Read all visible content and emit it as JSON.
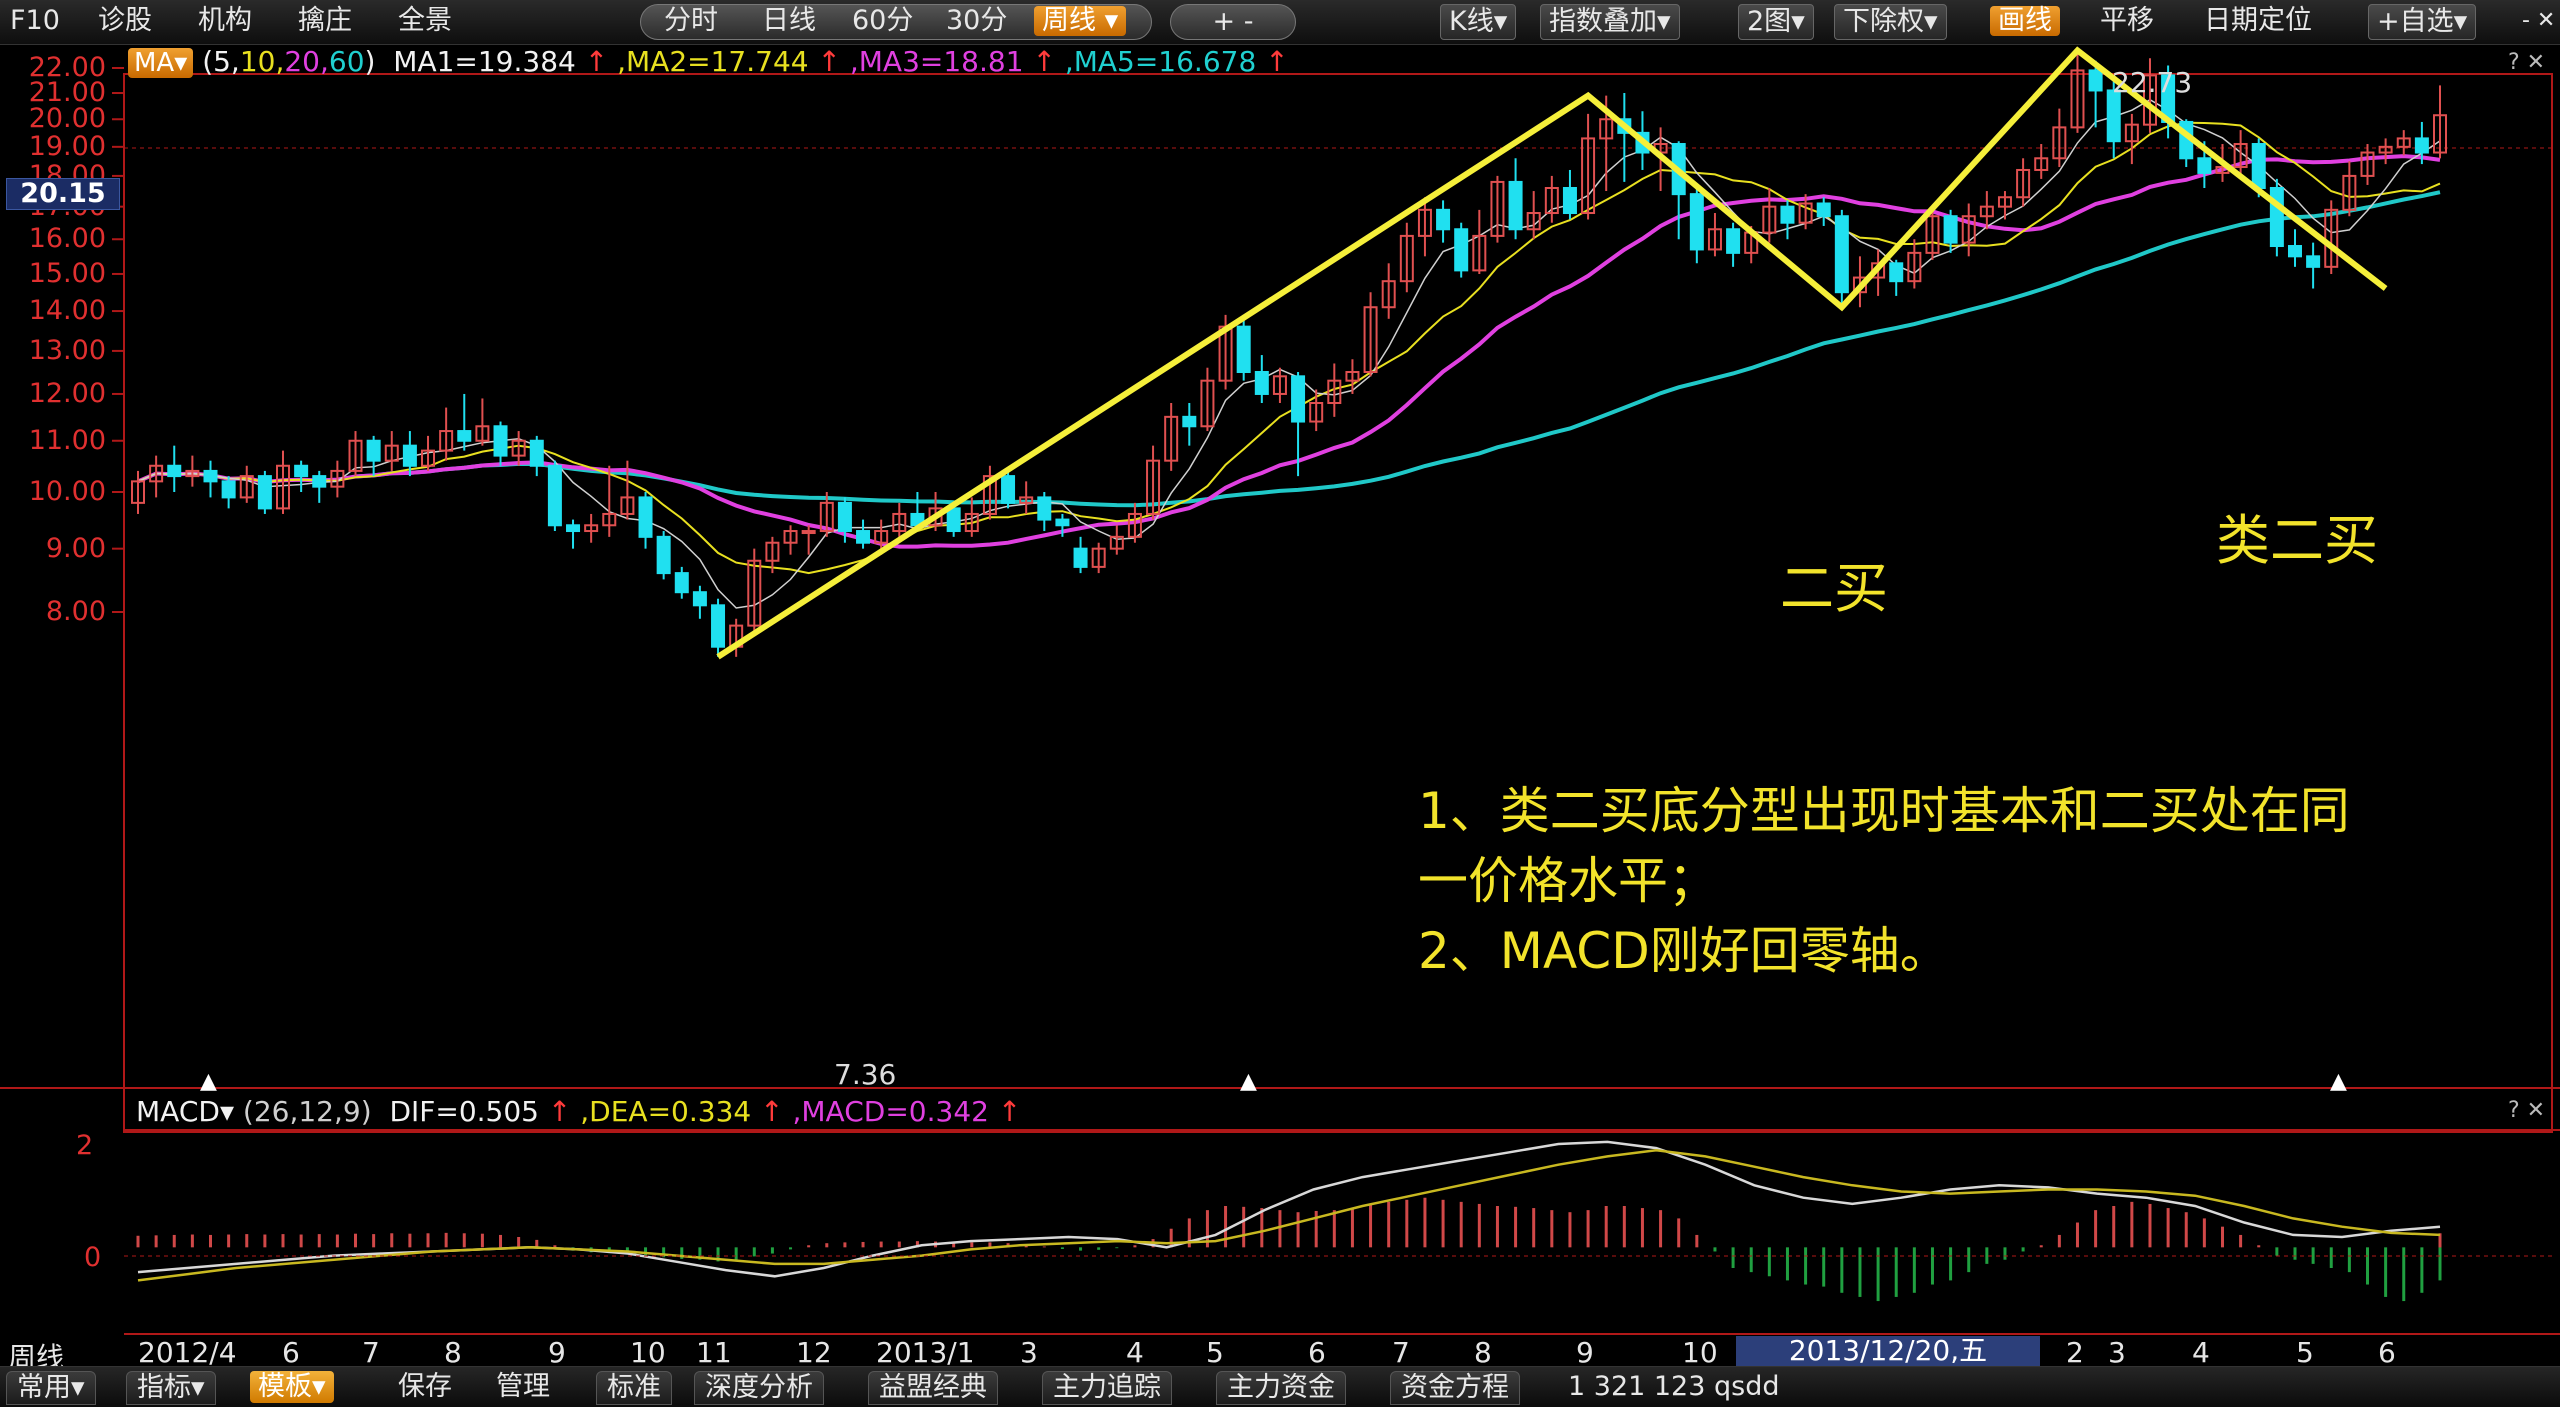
{
  "toolbar": {
    "left_items": [
      "F10",
      "诊股",
      "机构",
      "擒庄",
      "全景"
    ],
    "period_items": [
      "分时",
      "日线",
      "60分",
      "30分"
    ],
    "period_selected": "周线",
    "zoom_label": "+ -",
    "right_items": [
      "K线",
      "指数叠加",
      "2图",
      "下除权"
    ],
    "draw_label": "画线",
    "pan_label": "平移",
    "date_locate_label": "日期定位",
    "watchlist_label": "+自选"
  },
  "main_legend": {
    "indicator": "MA",
    "params": "(5,10,20,60)",
    "param_parts": [
      "(5,",
      "10,",
      "20,",
      "60",
      ")"
    ],
    "ma1": "MA1=19.384",
    "ma2": ",MA2=17.744",
    "ma3": ",MA3=18.81",
    "ma5": ",MA5=16.678",
    "arrow": "↑"
  },
  "price_axis": {
    "labels": [
      "22.00",
      "21.00",
      "20.00",
      "19.00",
      "18.00",
      "17.00",
      "16.00",
      "15.00",
      "14.00",
      "13.00",
      "12.00",
      "11.00",
      "10.00",
      "9.00",
      "8.00"
    ],
    "current_price": "20.15"
  },
  "peak_labels": {
    "high": "22.73",
    "low": "7.36"
  },
  "annotations": {
    "second_buy": "二买",
    "similar_second_buy": "类二买",
    "note_lines": [
      "1、类二买底分型出现时基本和二买处在同",
      "一价格水平；",
      "2、MACD刚好回零轴。"
    ]
  },
  "macd_legend": {
    "indicator": "MACD",
    "params": "(26,12,9)",
    "dif": "DIF=0.505",
    "dea": ",DEA=0.334",
    "macd": ",MACD=0.342",
    "arrow": "↑"
  },
  "macd_axis": {
    "labels": [
      "2",
      "0"
    ]
  },
  "x_axis": {
    "period_label": "周线",
    "labels": [
      "2012/4",
      "6",
      "7",
      "8",
      "9",
      "10",
      "11",
      "12",
      "2013/1",
      "3",
      "4",
      "5",
      "6",
      "7",
      "8",
      "9",
      "10",
      "2",
      "3",
      "4",
      "5",
      "6"
    ],
    "selected_date": "2013/12/20,五"
  },
  "bottom_bar": {
    "tabs_left": [
      "常用",
      "指标"
    ],
    "tab_selected": "模板",
    "items": [
      "保存",
      "管理"
    ],
    "tabs": [
      "标准",
      "深度分析",
      "益盟经典",
      "主力追踪",
      "主力资金",
      "资金方程"
    ],
    "status": "1  321  123  qsdd"
  },
  "colors": {
    "ma1": "#d0d0d0",
    "ma2": "#e8e020",
    "ma3": "#e040e0",
    "ma5": "#20c8c8",
    "up": "#e05050",
    "down": "#20e0f0",
    "trend_line": "#f5ef3a",
    "axis": "#b01818"
  },
  "chart_data": {
    "type": "candlestick",
    "title": "",
    "ylim": [
      7,
      23
    ],
    "zigzag_points": [
      {
        "week": "2012/12",
        "price": 7.36
      },
      {
        "week": "2013/9",
        "price": 20.9
      },
      {
        "week": "2013/11",
        "price": 14.1
      },
      {
        "week": "2014/2",
        "price": 22.73
      },
      {
        "week": "2014/5",
        "price": 14.6
      }
    ],
    "candles": [
      [
        9.8,
        10.2,
        9.6,
        10.4
      ],
      [
        10.2,
        10.5,
        9.9,
        10.7
      ],
      [
        10.5,
        10.3,
        10.0,
        10.9
      ],
      [
        10.3,
        10.4,
        10.1,
        10.7
      ],
      [
        10.4,
        10.2,
        9.9,
        10.6
      ],
      [
        10.2,
        9.9,
        9.7,
        10.3
      ],
      [
        9.9,
        10.3,
        9.8,
        10.5
      ],
      [
        10.3,
        9.7,
        9.6,
        10.4
      ],
      [
        9.7,
        10.5,
        9.6,
        10.8
      ],
      [
        10.5,
        10.3,
        10.0,
        10.6
      ],
      [
        10.3,
        10.1,
        9.8,
        10.4
      ],
      [
        10.1,
        10.4,
        9.9,
        10.6
      ],
      [
        10.4,
        11.0,
        10.3,
        11.2
      ],
      [
        11.0,
        10.6,
        10.3,
        11.1
      ],
      [
        10.6,
        10.9,
        10.4,
        11.2
      ],
      [
        10.9,
        10.5,
        10.3,
        11.2
      ],
      [
        10.5,
        10.8,
        10.4,
        11.1
      ],
      [
        10.8,
        11.2,
        10.6,
        11.7
      ],
      [
        11.2,
        11.0,
        10.8,
        12.0
      ],
      [
        11.0,
        11.3,
        10.9,
        11.9
      ],
      [
        11.3,
        10.7,
        10.5,
        11.4
      ],
      [
        10.7,
        11.0,
        10.5,
        11.2
      ],
      [
        11.0,
        10.5,
        10.3,
        11.1
      ],
      [
        10.5,
        9.4,
        9.3,
        10.6
      ],
      [
        9.4,
        9.3,
        9.0,
        9.5
      ],
      [
        9.3,
        9.4,
        9.1,
        9.6
      ],
      [
        9.4,
        9.6,
        9.2,
        10.5
      ],
      [
        9.6,
        9.9,
        9.5,
        10.6
      ],
      [
        9.9,
        9.2,
        9.0,
        10.0
      ],
      [
        9.2,
        8.6,
        8.5,
        9.3
      ],
      [
        8.6,
        8.3,
        8.2,
        8.7
      ],
      [
        8.3,
        8.1,
        7.9,
        8.4
      ],
      [
        8.1,
        7.5,
        7.36,
        8.2
      ],
      [
        7.5,
        7.8,
        7.36,
        7.9
      ],
      [
        7.8,
        8.8,
        7.7,
        9.0
      ],
      [
        8.8,
        9.1,
        8.6,
        9.2
      ],
      [
        9.1,
        9.3,
        8.9,
        9.4
      ],
      [
        9.3,
        9.3,
        8.9,
        9.4
      ],
      [
        9.3,
        9.8,
        9.2,
        10.0
      ],
      [
        9.8,
        9.3,
        9.1,
        9.9
      ],
      [
        9.3,
        9.1,
        9.0,
        9.5
      ],
      [
        9.1,
        9.3,
        8.9,
        9.5
      ],
      [
        9.3,
        9.6,
        9.2,
        9.8
      ],
      [
        9.6,
        9.4,
        9.3,
        10.0
      ],
      [
        9.4,
        9.7,
        9.3,
        10.0
      ],
      [
        9.7,
        9.3,
        9.2,
        9.8
      ],
      [
        9.3,
        9.6,
        9.2,
        9.9
      ],
      [
        9.6,
        10.3,
        9.5,
        10.5
      ],
      [
        10.3,
        9.8,
        9.7,
        10.4
      ],
      [
        9.8,
        9.9,
        9.6,
        10.2
      ],
      [
        9.9,
        9.5,
        9.3,
        10.0
      ],
      [
        9.5,
        9.4,
        9.2,
        9.6
      ],
      [
        9.0,
        8.7,
        8.6,
        9.2
      ],
      [
        8.7,
        9.0,
        8.6,
        9.1
      ],
      [
        9.0,
        9.2,
        8.9,
        9.4
      ],
      [
        9.2,
        9.6,
        9.1,
        9.8
      ],
      [
        9.6,
        10.6,
        9.5,
        10.9
      ],
      [
        10.6,
        11.5,
        10.4,
        11.8
      ],
      [
        11.5,
        11.3,
        10.9,
        11.8
      ],
      [
        11.3,
        12.3,
        11.2,
        12.6
      ],
      [
        12.3,
        13.6,
        12.1,
        13.9
      ],
      [
        13.6,
        12.5,
        12.3,
        13.9
      ],
      [
        12.5,
        12.0,
        11.8,
        12.9
      ],
      [
        12.0,
        12.4,
        11.8,
        12.6
      ],
      [
        12.4,
        11.4,
        10.3,
        12.5
      ],
      [
        11.4,
        11.8,
        11.2,
        12.1
      ],
      [
        11.8,
        12.3,
        11.5,
        12.7
      ],
      [
        12.3,
        12.5,
        12.0,
        12.8
      ],
      [
        12.5,
        14.1,
        12.4,
        14.5
      ],
      [
        14.1,
        14.8,
        13.8,
        15.3
      ],
      [
        14.8,
        16.1,
        14.5,
        16.5
      ],
      [
        16.1,
        16.9,
        15.5,
        17.3
      ],
      [
        16.9,
        16.3,
        15.9,
        17.2
      ],
      [
        16.3,
        15.1,
        14.9,
        16.5
      ],
      [
        15.1,
        16.1,
        15.0,
        16.9
      ],
      [
        16.1,
        17.8,
        15.9,
        18.0
      ],
      [
        17.8,
        16.3,
        16.0,
        18.6
      ],
      [
        16.3,
        16.8,
        16.0,
        17.5
      ],
      [
        16.8,
        17.6,
        16.5,
        18.0
      ],
      [
        17.6,
        16.8,
        16.6,
        18.2
      ],
      [
        16.8,
        19.3,
        16.6,
        20.2
      ],
      [
        19.3,
        20.0,
        17.5,
        20.9
      ],
      [
        20.0,
        19.5,
        17.8,
        21.0
      ],
      [
        19.5,
        18.8,
        18.2,
        20.3
      ],
      [
        18.8,
        19.1,
        17.5,
        19.7
      ],
      [
        19.1,
        17.4,
        16.0,
        19.2
      ],
      [
        17.4,
        15.7,
        15.3,
        17.6
      ],
      [
        15.7,
        16.3,
        15.5,
        16.8
      ],
      [
        16.3,
        15.6,
        15.2,
        16.5
      ],
      [
        15.6,
        16.2,
        15.3,
        16.4
      ],
      [
        16.2,
        17.0,
        15.9,
        17.6
      ],
      [
        17.0,
        16.5,
        16.0,
        17.2
      ],
      [
        16.5,
        17.1,
        16.3,
        17.4
      ],
      [
        17.1,
        16.7,
        16.4,
        17.3
      ],
      [
        16.7,
        14.5,
        14.1,
        16.9
      ],
      [
        14.5,
        14.9,
        14.1,
        15.5
      ],
      [
        14.9,
        15.3,
        14.4,
        15.7
      ],
      [
        15.3,
        14.8,
        14.4,
        15.4
      ],
      [
        14.8,
        15.6,
        14.6,
        16.0
      ],
      [
        15.6,
        16.7,
        15.4,
        17.0
      ],
      [
        16.7,
        15.9,
        15.6,
        16.9
      ],
      [
        15.9,
        16.7,
        15.5,
        17.1
      ],
      [
        16.7,
        17.0,
        16.3,
        17.5
      ],
      [
        17.0,
        17.3,
        16.6,
        17.5
      ],
      [
        17.3,
        18.2,
        17.0,
        18.6
      ],
      [
        18.2,
        18.6,
        17.9,
        19.1
      ],
      [
        18.6,
        19.7,
        18.3,
        20.4
      ],
      [
        19.7,
        21.9,
        19.5,
        22.73
      ],
      [
        21.9,
        21.1,
        19.7,
        22.3
      ],
      [
        21.1,
        19.2,
        18.6,
        21.6
      ],
      [
        19.2,
        19.8,
        18.4,
        20.2
      ],
      [
        19.8,
        21.7,
        19.5,
        22.4
      ],
      [
        21.7,
        19.9,
        19.3,
        22.1
      ],
      [
        19.9,
        18.6,
        18.3,
        20.0
      ],
      [
        18.6,
        18.1,
        17.6,
        19.2
      ],
      [
        18.1,
        18.3,
        17.8,
        19.1
      ],
      [
        18.3,
        19.1,
        18.0,
        19.6
      ],
      [
        19.1,
        17.6,
        17.3,
        19.3
      ],
      [
        17.6,
        15.8,
        15.5,
        17.9
      ],
      [
        15.8,
        15.5,
        15.2,
        16.3
      ],
      [
        15.5,
        15.2,
        14.6,
        15.9
      ],
      [
        15.2,
        16.9,
        15.0,
        17.2
      ],
      [
        16.9,
        18.0,
        16.7,
        18.5
      ],
      [
        18.0,
        18.8,
        17.7,
        19.1
      ],
      [
        18.8,
        19.0,
        18.4,
        19.3
      ],
      [
        19.0,
        19.3,
        18.7,
        19.6
      ],
      [
        19.3,
        18.8,
        18.4,
        19.9
      ],
      [
        18.8,
        20.15,
        18.6,
        21.3
      ]
    ],
    "macd_hist": [
      0.28,
      0.29,
      0.3,
      0.31,
      0.3,
      0.31,
      0.32,
      0.31,
      0.32,
      0.31,
      0.32,
      0.31,
      0.33,
      0.32,
      0.34,
      0.33,
      0.34,
      0.35,
      0.34,
      0.33,
      0.3,
      0.25,
      0.18,
      0.05,
      -0.08,
      -0.12,
      -0.14,
      -0.16,
      -0.2,
      -0.24,
      -0.28,
      -0.3,
      -0.34,
      -0.3,
      -0.22,
      -0.15,
      -0.05,
      0.05,
      0.1,
      0.12,
      0.13,
      0.14,
      0.14,
      0.15,
      0.14,
      0.13,
      0.12,
      0.12,
      0.1,
      0.08,
      0.02,
      -0.04,
      -0.08,
      -0.06,
      -0.02,
      0.05,
      0.2,
      0.45,
      0.7,
      0.9,
      1.0,
      0.98,
      0.95,
      0.9,
      0.85,
      0.88,
      0.9,
      0.95,
      1.05,
      1.1,
      1.15,
      1.2,
      1.15,
      1.1,
      1.05,
      1.0,
      0.98,
      0.95,
      0.9,
      0.85,
      0.9,
      1.0,
      1.0,
      0.95,
      0.9,
      0.7,
      0.3,
      -0.1,
      -0.5,
      -0.6,
      -0.7,
      -0.8,
      -0.9,
      -0.95,
      -1.1,
      -1.2,
      -1.3,
      -1.2,
      -1.1,
      -0.9,
      -0.8,
      -0.6,
      -0.4,
      -0.3,
      -0.1,
      0.05,
      0.3,
      0.6,
      0.9,
      1.0,
      1.1,
      1.05,
      0.95,
      0.85,
      0.7,
      0.5,
      0.3,
      0.05,
      -0.2,
      -0.3,
      -0.4,
      -0.5,
      -0.6,
      -0.9,
      -1.2,
      -1.3,
      -1.1,
      -0.8,
      -0.3,
      0.2,
      0.34
    ],
    "dif_line": [
      -0.6,
      -0.5,
      -0.4,
      -0.3,
      -0.2,
      -0.15,
      -0.1,
      -0.05,
      0.0,
      -0.05,
      -0.15,
      -0.35,
      -0.55,
      -0.7,
      -0.5,
      -0.2,
      0.05,
      0.15,
      0.2,
      0.25,
      0.2,
      0.0,
      0.3,
      0.9,
      1.4,
      1.7,
      1.9,
      2.1,
      2.3,
      2.5,
      2.55,
      2.4,
      2.0,
      1.5,
      1.2,
      1.05,
      1.2,
      1.4,
      1.5,
      1.45,
      1.3,
      1.2,
      1.0,
      0.6,
      0.3,
      0.25,
      0.4,
      0.5
    ],
    "dea_line": [
      -0.8,
      -0.65,
      -0.5,
      -0.4,
      -0.3,
      -0.2,
      -0.1,
      -0.05,
      0.0,
      -0.05,
      -0.1,
      -0.2,
      -0.3,
      -0.4,
      -0.4,
      -0.3,
      -0.2,
      -0.05,
      0.05,
      0.1,
      0.15,
      0.1,
      0.15,
      0.4,
      0.7,
      1.0,
      1.25,
      1.5,
      1.75,
      2.0,
      2.2,
      2.35,
      2.2,
      1.95,
      1.7,
      1.5,
      1.35,
      1.3,
      1.35,
      1.4,
      1.4,
      1.35,
      1.25,
      1.0,
      0.7,
      0.5,
      0.35,
      0.3
    ],
    "macd_ylim": [
      -2,
      2.5
    ]
  }
}
